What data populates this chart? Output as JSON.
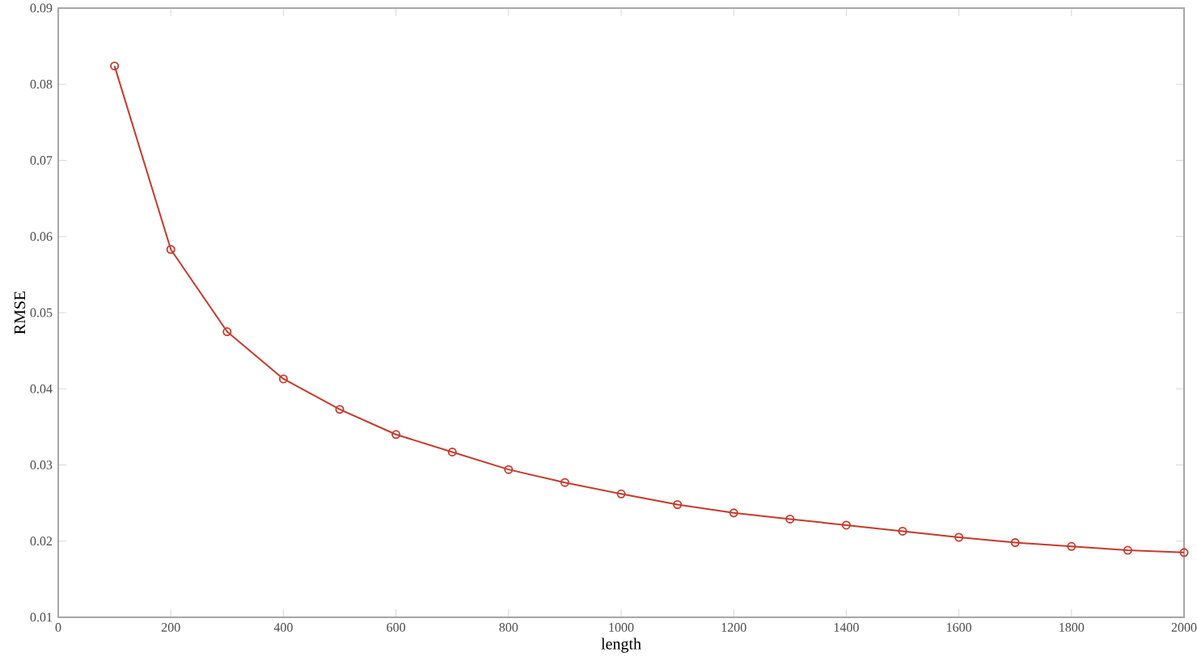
{
  "chart_data": {
    "type": "line",
    "xlabel": "length",
    "ylabel": "RMSE",
    "x": [
      100,
      200,
      300,
      400,
      500,
      600,
      700,
      800,
      900,
      1000,
      1100,
      1200,
      1300,
      1400,
      1500,
      1600,
      1700,
      1800,
      1900,
      2000
    ],
    "series": [
      {
        "color": "#c8392b",
        "values": [
          0.0824,
          0.0583,
          0.0475,
          0.0413,
          0.0373,
          0.034,
          0.0317,
          0.0294,
          0.0277,
          0.0262,
          0.0248,
          0.0237,
          0.0229,
          0.0221,
          0.0213,
          0.0205,
          0.0198,
          0.0193,
          0.0188,
          0.0185
        ]
      }
    ],
    "xlim": [
      0,
      2000
    ],
    "ylim": [
      0.01,
      0.09
    ],
    "xticks": [
      0,
      200,
      400,
      600,
      800,
      1000,
      1200,
      1400,
      1600,
      1800,
      2000
    ],
    "yticks": [
      0.01,
      0.02,
      0.03,
      0.04,
      0.05,
      0.06,
      0.07,
      0.08,
      0.09
    ],
    "marker": "circle",
    "line_style": "solid",
    "grid": false
  }
}
